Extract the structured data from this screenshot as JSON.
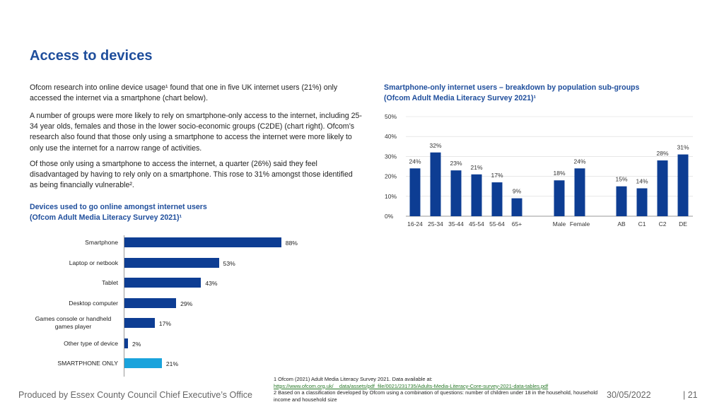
{
  "title": "Access to devices",
  "paragraphs": {
    "p1": "Ofcom research into online device usage¹ found that one in five UK internet users (21%) only accessed the internet via a smartphone (chart below).",
    "p2": "A number of groups were more likely to rely on smartphone-only access to the internet, including 25-34 year olds, females and those in the lower socio-economic groups (C2DE) (chart right). Ofcom’s research also found that those only using a smartphone to access the internet were more likely to only use the internet for a narrow range of activities.",
    "p3": "Of those only using a smartphone to access the internet, a quarter (26%) said they feel disadvantaged by having to rely only on a smartphone. This rose to 31% amongst those identified as being financially vulnerable²."
  },
  "left_chart_heading": {
    "line1": "Devices used to go online amongst internet users",
    "line2": "(Ofcom Adult Media Literacy Survey 2021)¹"
  },
  "right_chart_heading": {
    "line1": "Smartphone-only internet users – breakdown by population sub-groups",
    "line2": "(Ofcom Adult Media Literacy Survey 2021)¹"
  },
  "chart_data": [
    {
      "type": "bar",
      "orientation": "horizontal",
      "categories": [
        "Smartphone",
        "Laptop or netbook",
        "Tablet",
        "Desktop computer",
        "Games console or handheld games player",
        "Other type of device",
        "SMARTPHONE ONLY"
      ],
      "values": [
        88,
        53,
        43,
        29,
        17,
        2,
        21
      ],
      "value_labels": [
        "88%",
        "53%",
        "43%",
        "29%",
        "17%",
        "2%",
        "21%"
      ],
      "xlim": [
        0,
        100
      ],
      "colors": {
        "default": "#0d3d93",
        "highlight": "#1aa3dc"
      },
      "highlight_category": "SMARTPHONE ONLY"
    },
    {
      "type": "bar",
      "categories": [
        "16-24",
        "25-34",
        "35-44",
        "45-54",
        "55-64",
        "65+",
        "Male",
        "Female",
        "AB",
        "C1",
        "C2",
        "DE"
      ],
      "values": [
        24,
        32,
        23,
        21,
        17,
        9,
        18,
        24,
        15,
        14,
        28,
        31
      ],
      "value_labels": [
        "24%",
        "32%",
        "23%",
        "21%",
        "17%",
        "9%",
        "18%",
        "24%",
        "15%",
        "14%",
        "28%",
        "31%"
      ],
      "ylim": [
        0,
        50
      ],
      "yticks": [
        "0%",
        "10%",
        "20%",
        "30%",
        "40%",
        "50%"
      ],
      "grid": false,
      "color": "#0d3d93"
    }
  ],
  "footnotes": {
    "f1": "1 Ofcom (2021) Adult Media Literacy Survey 2021. Data available at:",
    "f1_link": "https://www.ofcom.org.uk/__data/assets/pdf_file/0021/231735/Adults-Media-Literacy-Core-survey-2021-data-tables.pdf",
    "f2": "2 Based on a classification developed by Ofcom using a combination of questions: number of children under 18 in the household, household income and household size"
  },
  "footer": {
    "producer": "Produced by Essex County Council Chief Executive’s Office",
    "date": "30/05/2022",
    "page": "|  21"
  }
}
